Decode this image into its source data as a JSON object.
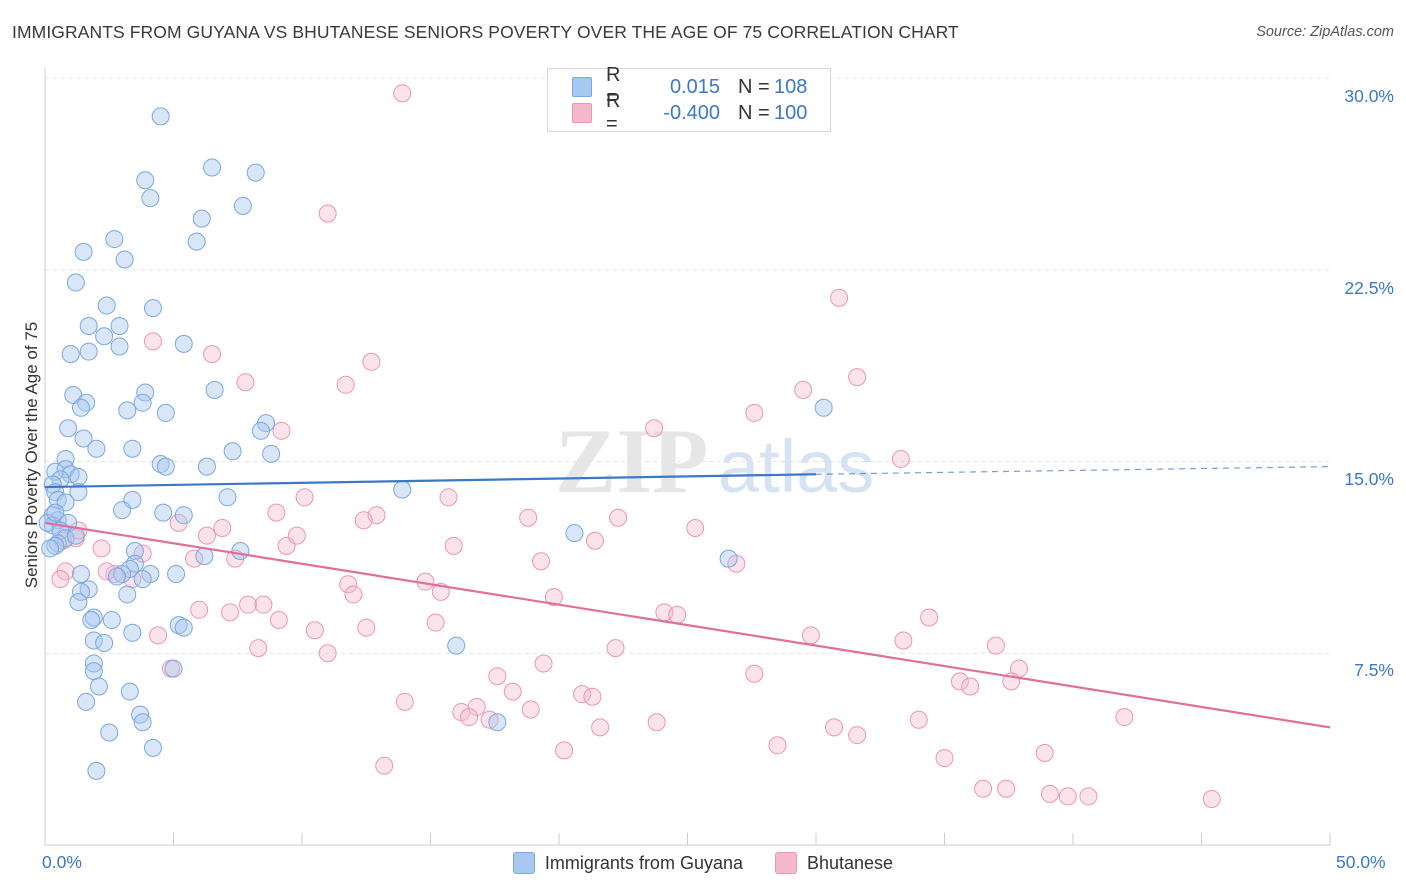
{
  "title": "IMMIGRANTS FROM GUYANA VS BHUTANESE SENIORS POVERTY OVER THE AGE OF 75 CORRELATION CHART",
  "source": "Source: ZipAtlas.com",
  "watermark": "ZIPatlas",
  "legend_top": {
    "rows": [
      {
        "r_label": "R =",
        "r_value": "0.015",
        "n_label": "N =",
        "n_value": "108",
        "color": "#a9c8ef"
      },
      {
        "r_label": "R =",
        "r_value": "-0.400",
        "n_label": "N =",
        "n_value": "100",
        "color": "#f5b8cc"
      }
    ]
  },
  "legend_bottom": [
    {
      "label": "Immigrants from Guyana",
      "color": "#a9c8ef"
    },
    {
      "label": "Bhutanese",
      "color": "#f5b8cc"
    }
  ],
  "chart_data": {
    "type": "scatter",
    "title": "IMMIGRANTS FROM GUYANA VS BHUTANESE SENIORS POVERTY OVER THE AGE OF 75 CORRELATION CHART",
    "xlabel": "",
    "ylabel": "Seniors Poverty Over the Age of 75",
    "xlim": [
      0,
      50
    ],
    "ylim": [
      0,
      30
    ],
    "x_tick_labels": [
      "0.0%",
      "50.0%"
    ],
    "y_tick_labels": [
      "7.5%",
      "15.0%",
      "22.5%",
      "30.0%"
    ],
    "y_ticks": [
      7.5,
      15.0,
      22.5,
      30.0
    ],
    "grid": true,
    "legend_placement": "top-center",
    "colors": {
      "series1": "#3b78c6",
      "series2": "#e0709a"
    },
    "series": [
      {
        "name": "Immigrants from Guyana",
        "color": "#3b78c6",
        "trend": {
          "x": [
            0,
            30
          ],
          "y": [
            14.0,
            14.5
          ],
          "dashed_extension_to": [
            50,
            14.8
          ]
        },
        "points": [
          [
            4.5,
            28.5
          ],
          [
            6.5,
            26.5
          ],
          [
            8.2,
            26.3
          ],
          [
            3.9,
            26.0
          ],
          [
            4.1,
            25.3
          ],
          [
            7.7,
            25.0
          ],
          [
            6.1,
            24.5
          ],
          [
            5.9,
            23.6
          ],
          [
            2.7,
            23.7
          ],
          [
            1.5,
            23.2
          ],
          [
            3.1,
            22.9
          ],
          [
            1.2,
            22.0
          ],
          [
            4.2,
            21.0
          ],
          [
            2.4,
            21.1
          ],
          [
            1.7,
            20.3
          ],
          [
            2.9,
            20.3
          ],
          [
            2.3,
            19.9
          ],
          [
            5.4,
            19.6
          ],
          [
            1.7,
            19.3
          ],
          [
            2.9,
            19.5
          ],
          [
            1.0,
            19.2
          ],
          [
            6.6,
            17.8
          ],
          [
            1.1,
            17.6
          ],
          [
            3.9,
            17.7
          ],
          [
            3.8,
            17.3
          ],
          [
            1.6,
            17.3
          ],
          [
            1.4,
            17.1
          ],
          [
            3.2,
            17.0
          ],
          [
            4.7,
            16.9
          ],
          [
            8.6,
            16.5
          ],
          [
            8.4,
            16.2
          ],
          [
            0.9,
            16.3
          ],
          [
            1.5,
            15.9
          ],
          [
            2.0,
            15.5
          ],
          [
            3.4,
            15.5
          ],
          [
            7.3,
            15.4
          ],
          [
            8.8,
            15.3
          ],
          [
            0.8,
            15.1
          ],
          [
            4.5,
            14.9
          ],
          [
            4.7,
            14.8
          ],
          [
            6.3,
            14.8
          ],
          [
            0.4,
            14.6
          ],
          [
            0.8,
            14.7
          ],
          [
            1.0,
            14.5
          ],
          [
            1.3,
            14.4
          ],
          [
            0.6,
            14.3
          ],
          [
            0.3,
            14.1
          ],
          [
            0.4,
            13.8
          ],
          [
            1.3,
            13.8
          ],
          [
            3.4,
            13.5
          ],
          [
            7.1,
            13.6
          ],
          [
            0.5,
            13.5
          ],
          [
            0.8,
            13.4
          ],
          [
            3.0,
            13.1
          ],
          [
            4.6,
            13.0
          ],
          [
            5.4,
            12.9
          ],
          [
            0.3,
            12.9
          ],
          [
            0.5,
            12.7
          ],
          [
            0.9,
            12.6
          ],
          [
            0.3,
            12.5
          ],
          [
            0.1,
            12.6
          ],
          [
            0.6,
            12.3
          ],
          [
            0.8,
            12.0
          ],
          [
            0.5,
            11.8
          ],
          [
            0.4,
            11.7
          ],
          [
            0.2,
            11.6
          ],
          [
            7.6,
            11.5
          ],
          [
            3.5,
            11.5
          ],
          [
            6.2,
            11.3
          ],
          [
            3.5,
            11.0
          ],
          [
            3.3,
            10.8
          ],
          [
            3.0,
            10.6
          ],
          [
            4.1,
            10.6
          ],
          [
            5.1,
            10.6
          ],
          [
            1.4,
            10.6
          ],
          [
            2.8,
            10.5
          ],
          [
            3.8,
            10.4
          ],
          [
            1.7,
            10.0
          ],
          [
            1.4,
            9.9
          ],
          [
            3.2,
            9.8
          ],
          [
            1.3,
            9.5
          ],
          [
            1.9,
            8.9
          ],
          [
            1.8,
            8.8
          ],
          [
            5.2,
            8.6
          ],
          [
            5.4,
            8.5
          ],
          [
            3.4,
            8.3
          ],
          [
            1.9,
            8.0
          ],
          [
            2.3,
            7.9
          ],
          [
            16.0,
            7.8
          ],
          [
            1.9,
            7.1
          ],
          [
            1.9,
            6.8
          ],
          [
            2.1,
            6.2
          ],
          [
            3.3,
            6.0
          ],
          [
            1.6,
            5.6
          ],
          [
            3.7,
            5.1
          ],
          [
            3.8,
            4.8
          ],
          [
            17.6,
            4.8
          ],
          [
            2.5,
            4.4
          ],
          [
            4.2,
            3.8
          ],
          [
            2.0,
            2.9
          ],
          [
            5.0,
            6.9
          ],
          [
            13.9,
            13.9
          ],
          [
            20.6,
            12.2
          ],
          [
            26.6,
            11.2
          ],
          [
            30.3,
            17.1
          ],
          [
            2.6,
            8.8
          ],
          [
            0.4,
            13.0
          ],
          [
            1.2,
            12.1
          ]
        ]
      },
      {
        "name": "Bhutanese",
        "color": "#e0709a",
        "trend": {
          "x": [
            0,
            50
          ],
          "y": [
            12.6,
            4.6
          ]
        },
        "points": [
          [
            13.9,
            29.4
          ],
          [
            11.0,
            24.7
          ],
          [
            30.9,
            21.4
          ],
          [
            4.2,
            19.7
          ],
          [
            6.5,
            19.2
          ],
          [
            12.7,
            18.9
          ],
          [
            31.6,
            18.3
          ],
          [
            7.8,
            18.1
          ],
          [
            11.7,
            18.0
          ],
          [
            29.5,
            17.8
          ],
          [
            27.6,
            16.9
          ],
          [
            9.2,
            16.2
          ],
          [
            23.7,
            16.3
          ],
          [
            33.3,
            15.1
          ],
          [
            10.1,
            13.6
          ],
          [
            15.7,
            13.6
          ],
          [
            9.0,
            13.0
          ],
          [
            12.9,
            12.9
          ],
          [
            18.8,
            12.8
          ],
          [
            22.3,
            12.8
          ],
          [
            5.2,
            12.6
          ],
          [
            6.9,
            12.4
          ],
          [
            25.3,
            12.4
          ],
          [
            6.3,
            12.1
          ],
          [
            1.2,
            12.0
          ],
          [
            0.7,
            11.9
          ],
          [
            21.4,
            11.9
          ],
          [
            9.4,
            11.7
          ],
          [
            15.9,
            11.7
          ],
          [
            2.2,
            11.6
          ],
          [
            3.8,
            11.4
          ],
          [
            5.8,
            11.2
          ],
          [
            7.4,
            11.2
          ],
          [
            19.3,
            11.1
          ],
          [
            26.9,
            11.0
          ],
          [
            0.8,
            10.7
          ],
          [
            2.7,
            10.6
          ],
          [
            3.4,
            10.4
          ],
          [
            11.8,
            10.2
          ],
          [
            14.8,
            10.3
          ],
          [
            12.0,
            9.8
          ],
          [
            15.4,
            9.9
          ],
          [
            19.8,
            9.7
          ],
          [
            7.9,
            9.4
          ],
          [
            8.5,
            9.4
          ],
          [
            6.0,
            9.2
          ],
          [
            24.1,
            9.1
          ],
          [
            24.6,
            9.0
          ],
          [
            7.2,
            9.1
          ],
          [
            34.4,
            8.9
          ],
          [
            9.1,
            8.8
          ],
          [
            15.2,
            8.7
          ],
          [
            12.5,
            8.5
          ],
          [
            10.5,
            8.4
          ],
          [
            4.4,
            8.2
          ],
          [
            29.8,
            8.2
          ],
          [
            33.4,
            8.0
          ],
          [
            22.2,
            7.7
          ],
          [
            37.0,
            7.8
          ],
          [
            8.3,
            7.7
          ],
          [
            11.0,
            7.5
          ],
          [
            19.4,
            7.1
          ],
          [
            37.9,
            6.9
          ],
          [
            27.6,
            6.7
          ],
          [
            17.6,
            6.6
          ],
          [
            35.6,
            6.4
          ],
          [
            37.6,
            6.4
          ],
          [
            36.0,
            6.2
          ],
          [
            18.2,
            6.0
          ],
          [
            20.9,
            5.9
          ],
          [
            21.3,
            5.8
          ],
          [
            14.0,
            5.6
          ],
          [
            16.8,
            5.4
          ],
          [
            16.2,
            5.2
          ],
          [
            18.9,
            5.3
          ],
          [
            34.0,
            4.9
          ],
          [
            42.0,
            5.0
          ],
          [
            16.5,
            5.0
          ],
          [
            23.8,
            4.8
          ],
          [
            21.6,
            4.6
          ],
          [
            30.7,
            4.6
          ],
          [
            31.6,
            4.3
          ],
          [
            17.3,
            4.9
          ],
          [
            28.5,
            3.9
          ],
          [
            20.2,
            3.7
          ],
          [
            38.9,
            3.6
          ],
          [
            35.0,
            3.4
          ],
          [
            13.2,
            3.1
          ],
          [
            36.5,
            2.2
          ],
          [
            37.4,
            2.2
          ],
          [
            39.1,
            2.0
          ],
          [
            39.8,
            1.9
          ],
          [
            40.6,
            1.9
          ],
          [
            45.4,
            1.8
          ],
          [
            0.6,
            10.4
          ],
          [
            1.3,
            12.3
          ],
          [
            2.4,
            10.7
          ],
          [
            4.9,
            6.9
          ],
          [
            9.8,
            12.1
          ],
          [
            12.4,
            12.7
          ]
        ]
      }
    ]
  }
}
